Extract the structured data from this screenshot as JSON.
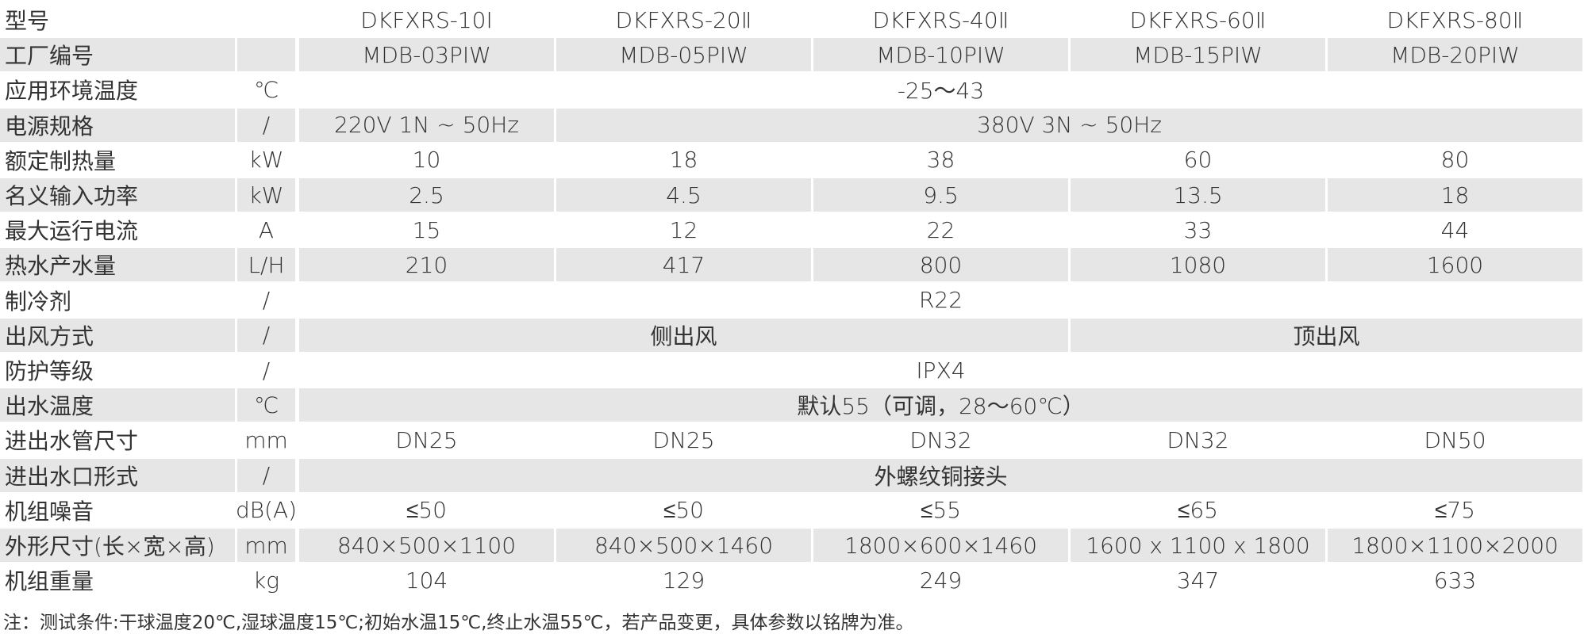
{
  "table": {
    "rows": [
      {
        "label": "型号",
        "cells": [
          "DKFXRS-10Ⅰ",
          "DKFXRS-20Ⅱ",
          "DKFXRS-40Ⅱ",
          "DKFXRS-60Ⅱ",
          "DKFXRS-80Ⅱ"
        ]
      },
      {
        "label": "工厂编号",
        "cells": [
          "MDB-03PIW",
          "MDB-05PIW",
          "MDB-10PIW",
          "MDB-15PIW",
          "MDB-20PIW"
        ]
      },
      {
        "label": "应用环境温度",
        "unit": "℃",
        "cells": [
          "-25～43"
        ]
      },
      {
        "label": "电源规格",
        "unit": "/",
        "cells": [
          "220V 1N ~ 50Hz",
          "380V 3N ~ 50Hz"
        ]
      },
      {
        "label": "额定制热量",
        "unit": "kW",
        "cells": [
          "10",
          "18",
          "38",
          "60",
          "80"
        ]
      },
      {
        "label": "名义输入功率",
        "unit": "kW",
        "cells": [
          "2.5",
          "4.5",
          "9.5",
          "13.5",
          "18"
        ]
      },
      {
        "label": "最大运行电流",
        "unit": "A",
        "cells": [
          "15",
          "12",
          "22",
          "33",
          "44"
        ]
      },
      {
        "label": "热水产水量",
        "unit": "L/H",
        "cells": [
          "210",
          "417",
          "800",
          "1080",
          "1600"
        ]
      },
      {
        "label": "制冷剂",
        "unit": "/",
        "cells": [
          "R22"
        ]
      },
      {
        "label": "出风方式",
        "unit": "/",
        "cells": [
          "侧出风",
          "顶出风"
        ]
      },
      {
        "label": "防护等级",
        "unit": "/",
        "cells": [
          "IPX4"
        ]
      },
      {
        "label": "出水温度",
        "unit": "℃",
        "cells": [
          "默认55（可调，28～60℃）"
        ]
      },
      {
        "label": "进出水管尺寸",
        "unit": "mm",
        "cells": [
          "DN25",
          "DN25",
          "DN32",
          "DN32",
          "DN50"
        ]
      },
      {
        "label": "进出水口形式",
        "unit": "/",
        "cells": [
          "外螺纹铜接头"
        ]
      },
      {
        "label": "机组噪音",
        "unit": "dB(A)",
        "cells": [
          "≤50",
          "≤50",
          "≤55",
          "≤65",
          "≤75"
        ]
      },
      {
        "label": "外形尺寸(长×宽×高)",
        "unit": "mm",
        "cells": [
          "840×500×1100",
          "840×500×1460",
          "1800×600×1460",
          "1600 x 1100 x 1800",
          "1800×1100×2000"
        ]
      },
      {
        "label": "机组重量",
        "unit": "kg",
        "cells": [
          "104",
          "129",
          "249",
          "347",
          "633"
        ]
      }
    ]
  },
  "note": "注：测试条件:干球温度20℃,湿球温度15℃;初始水温15℃,终止水温55℃，若产品变更，具体参数以铭牌为准。"
}
